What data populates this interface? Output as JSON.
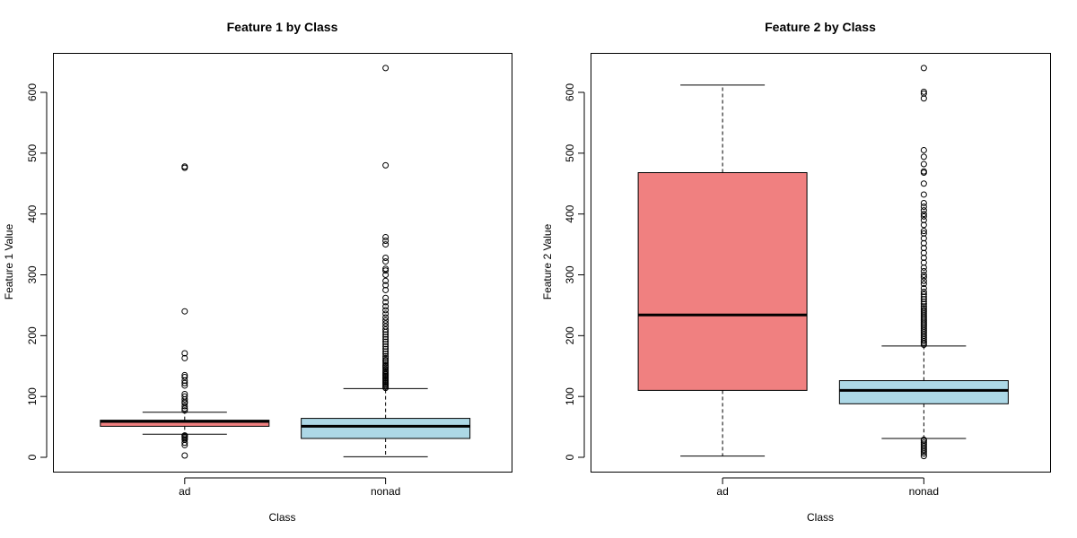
{
  "chart_data": [
    {
      "type": "box",
      "title": "Feature 1 by Class",
      "xlabel": "Class",
      "ylabel": "Feature 1 Value",
      "ylim": [
        0,
        650
      ],
      "yticks": [
        0,
        100,
        200,
        300,
        400,
        500,
        600
      ],
      "categories": [
        "ad",
        "nonad"
      ],
      "boxes": [
        {
          "category": "ad",
          "color": "#f08080",
          "whisker_low": 38,
          "q1": 51,
          "median": 59,
          "q3": 61,
          "whisker_high": 74,
          "outliers": [
            3,
            20,
            24,
            29,
            31,
            33,
            35,
            36,
            77,
            80,
            84,
            89,
            91,
            95,
            100,
            104,
            118,
            122,
            126,
            132,
            135,
            163,
            171,
            240,
            476,
            478
          ]
        },
        {
          "category": "nonad",
          "color": "#add8e6",
          "whisker_low": 1,
          "q1": 31,
          "median": 51,
          "q3": 64,
          "whisker_high": 113,
          "outliers": [
            114,
            116,
            118,
            120,
            122,
            124,
            126,
            128,
            130,
            132,
            134,
            136,
            138,
            140,
            142,
            145,
            148,
            150,
            152,
            155,
            158,
            160,
            163,
            166,
            170,
            174,
            178,
            182,
            186,
            190,
            194,
            198,
            202,
            206,
            210,
            215,
            220,
            225,
            230,
            236,
            242,
            248,
            255,
            262,
            275,
            283,
            290,
            300,
            307,
            310,
            322,
            328,
            350,
            356,
            362,
            480,
            640
          ]
        }
      ]
    },
    {
      "type": "box",
      "title": "Feature 2 by Class",
      "xlabel": "Class",
      "ylabel": "Feature 2 Value",
      "ylim": [
        0,
        650
      ],
      "yticks": [
        0,
        100,
        200,
        300,
        400,
        500,
        600
      ],
      "categories": [
        "ad",
        "nonad"
      ],
      "boxes": [
        {
          "category": "ad",
          "color": "#f08080",
          "whisker_low": 2,
          "q1": 110,
          "median": 234,
          "q3": 468,
          "whisker_high": 612,
          "outliers": []
        },
        {
          "category": "nonad",
          "color": "#add8e6",
          "whisker_low": 31,
          "q1": 88,
          "median": 110,
          "q3": 126,
          "whisker_high": 183,
          "outliers": [
            2,
            6,
            9,
            12,
            15,
            18,
            21,
            24,
            27,
            29,
            185,
            188,
            191,
            194,
            197,
            200,
            203,
            206,
            209,
            212,
            215,
            218,
            221,
            224,
            227,
            230,
            233,
            236,
            239,
            242,
            245,
            248,
            252,
            256,
            260,
            264,
            268,
            272,
            278,
            285,
            290,
            296,
            300,
            306,
            312,
            320,
            328,
            336,
            344,
            352,
            360,
            368,
            372,
            382,
            390,
            396,
            400,
            406,
            412,
            418,
            432,
            450,
            468,
            470,
            482,
            494,
            505,
            590,
            598,
            601,
            640
          ]
        }
      ]
    }
  ]
}
